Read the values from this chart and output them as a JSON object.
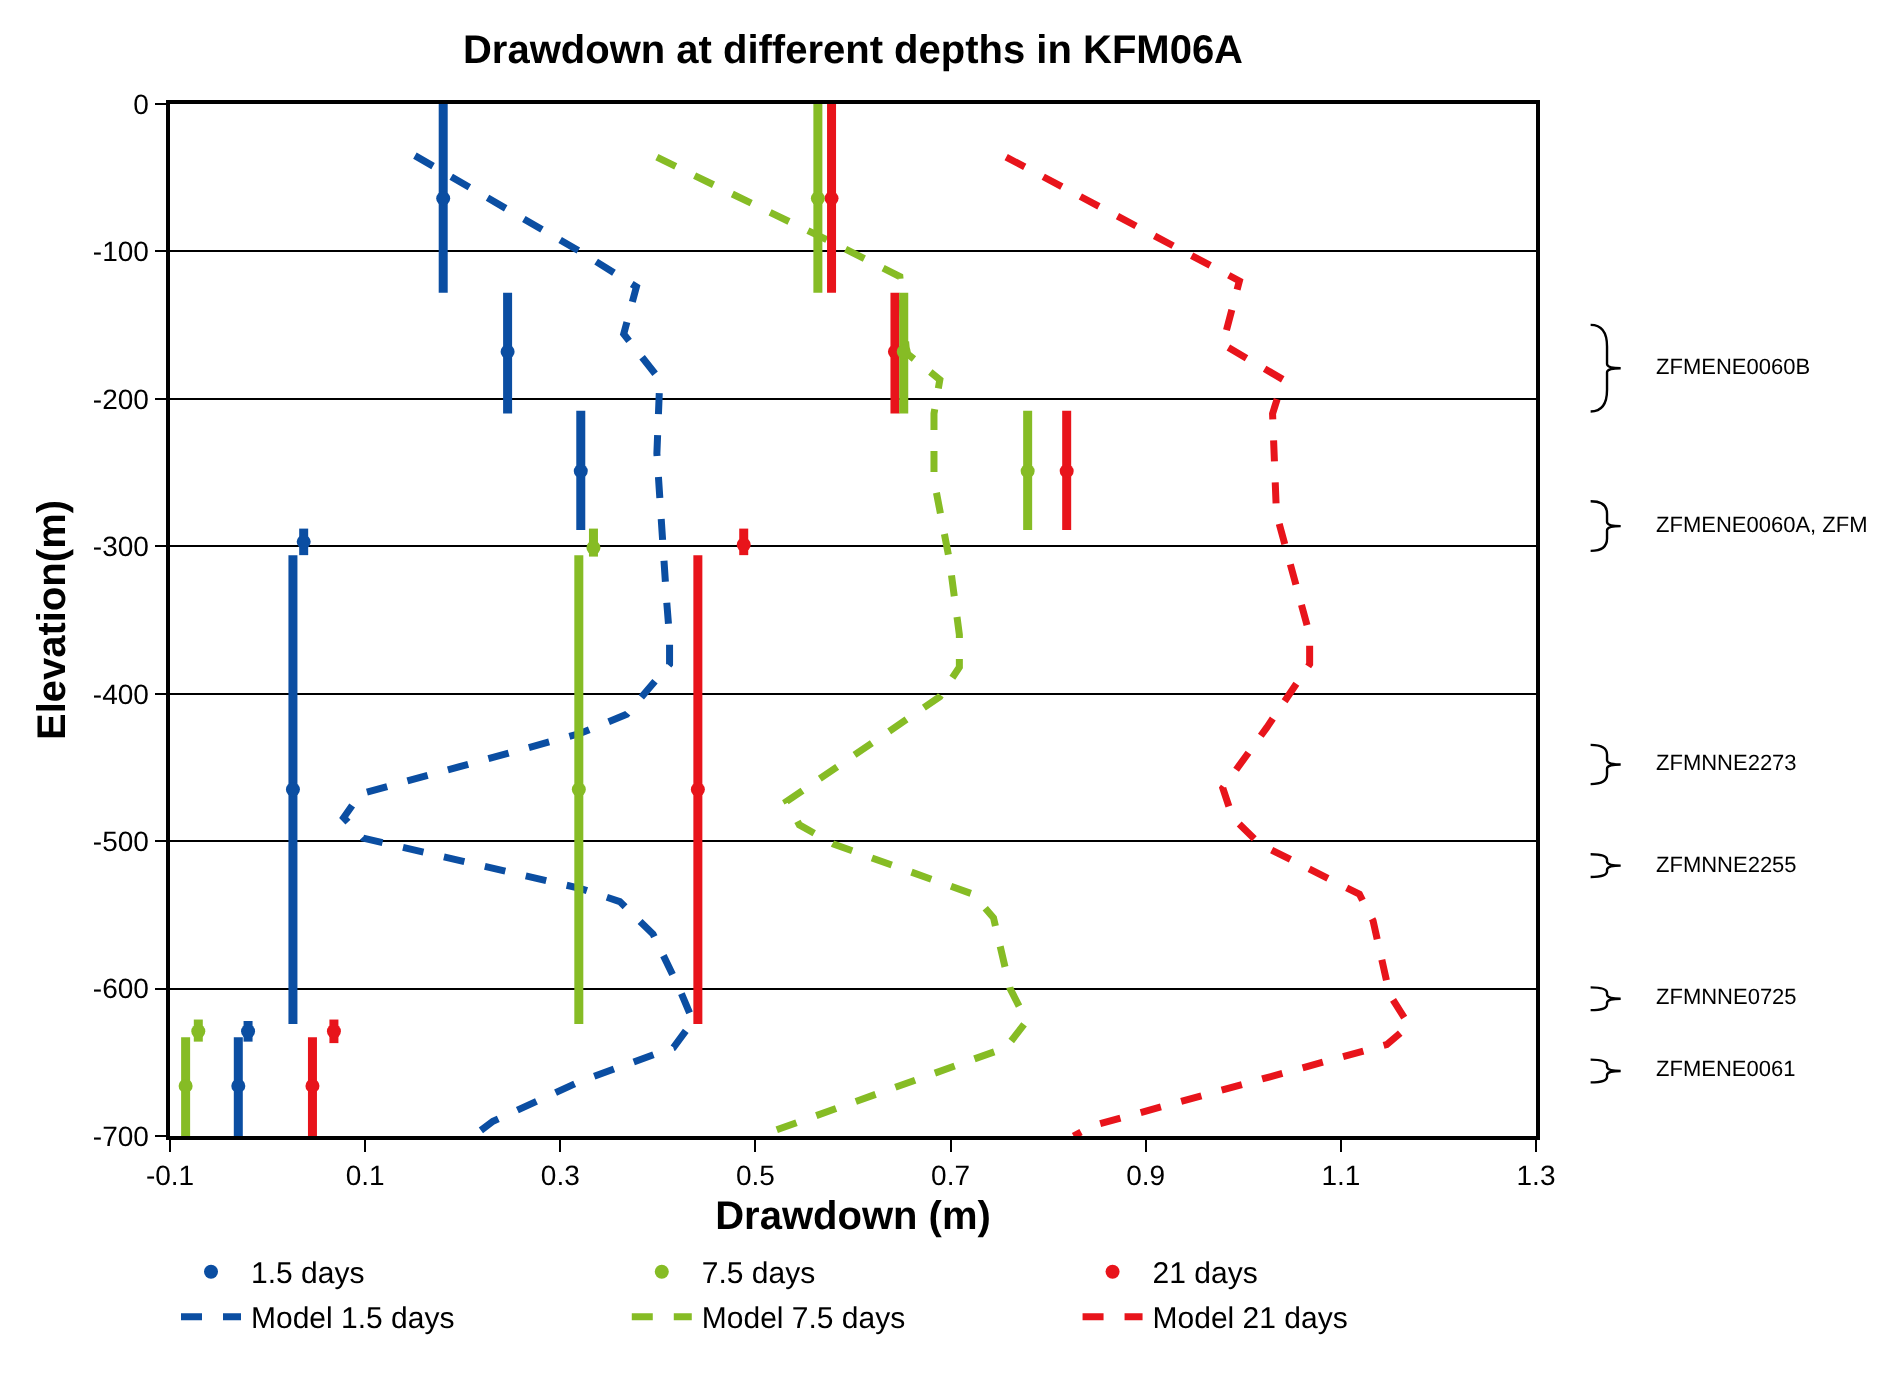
{
  "chart_data": {
    "type": "scatter",
    "title": "Drawdown at different depths in KFM06A",
    "xlabel": "Drawdown (m)",
    "ylabel": "Elevation(m)",
    "xlim": [
      -0.1,
      1.3
    ],
    "xticks": [
      -0.1,
      0.1,
      0.3,
      0.5,
      0.7,
      0.9,
      1.1,
      1.3
    ],
    "ylim": [
      -700,
      0
    ],
    "yticks": [
      -700,
      -600,
      -500,
      -400,
      -300,
      -200,
      -100,
      0
    ],
    "grid": "y",
    "legend": "bottom",
    "marker": "circle",
    "series": [
      {
        "name": "1.5 days",
        "color": "#0b4ea2",
        "x": [
          0.18,
          0.246,
          0.321,
          0.037,
          0.026,
          -0.03,
          -0.02
        ],
        "values": [
          -64,
          -168,
          -249,
          -297,
          -465,
          -666,
          -629
        ],
        "errors": [
          [
            -128,
            0
          ],
          [
            -210,
            -128
          ],
          [
            -289,
            -208
          ],
          [
            -306,
            -288
          ],
          [
            -624,
            -306
          ],
          [
            -700,
            -633
          ],
          [
            -636,
            -622
          ]
        ]
      },
      {
        "name": "7.5 days",
        "color": "#86bc25",
        "x": [
          0.564,
          0.652,
          0.779,
          0.334,
          0.319,
          -0.084,
          -0.071
        ],
        "values": [
          -64,
          -168,
          -249,
          -301,
          -465,
          -666,
          -629
        ],
        "errors": [
          [
            -128,
            0
          ],
          [
            -210,
            -128
          ],
          [
            -289,
            -208
          ],
          [
            -307,
            -288
          ],
          [
            -624,
            -306
          ],
          [
            -700,
            -633
          ],
          [
            -636,
            -621
          ]
        ]
      },
      {
        "name": "21 days",
        "color": "#e8141b",
        "x": [
          0.578,
          0.643,
          0.819,
          0.488,
          0.441,
          0.046,
          0.068
        ],
        "values": [
          -64,
          -168,
          -249,
          -299,
          -465,
          -666,
          -629
        ],
        "errors": [
          [
            -128,
            0
          ],
          [
            -210,
            -128
          ],
          [
            -289,
            -208
          ],
          [
            -306,
            -288
          ],
          [
            -624,
            -306
          ],
          [
            -700,
            -633
          ],
          [
            -637,
            -621
          ]
        ]
      },
      {
        "name": "Model 1.5 days",
        "type": "line",
        "line_style": "dashed",
        "marker": "none",
        "color": "#0b4ea2",
        "x": [
          0.151,
          0.32,
          0.378,
          0.365,
          0.402,
          0.399,
          0.409,
          0.412,
          0.412,
          0.368,
          0.32,
          0.095,
          0.078,
          0.098,
          0.32,
          0.361,
          0.395,
          0.422,
          0.436,
          0.416,
          0.32,
          0.231,
          0.211
        ],
        "values": [
          -35,
          -100,
          -124,
          -156,
          -187,
          -237,
          -337,
          -362,
          -380,
          -414,
          -427,
          -468,
          -484,
          -498,
          -532,
          -541,
          -563,
          -600,
          -622,
          -640,
          -663,
          -690,
          -700
        ]
      },
      {
        "name": "Model 7.5 days",
        "type": "line",
        "line_style": "dashed",
        "marker": "none",
        "color": "#86bc25",
        "x": [
          0.399,
          0.504,
          0.573,
          0.648,
          0.655,
          0.689,
          0.683,
          0.683,
          0.699,
          0.709,
          0.709,
          0.689,
          0.532,
          0.545,
          0.58,
          0.723,
          0.744,
          0.761,
          0.778,
          0.757,
          0.504
        ],
        "values": [
          -36,
          -70,
          -92,
          -117,
          -169,
          -187,
          -210,
          -255,
          -310,
          -360,
          -382,
          -402,
          -473,
          -489,
          -502,
          -536,
          -552,
          -600,
          -622,
          -640,
          -700
        ]
      },
      {
        "name": "Model 21 days",
        "type": "line",
        "line_style": "dashed",
        "marker": "none",
        "color": "#e8141b",
        "x": [
          0.757,
          0.996,
          0.979,
          1.041,
          1.03,
          1.034,
          1.068,
          1.068,
          1.024,
          0.979,
          0.989,
          1.017,
          1.119,
          1.133,
          1.15,
          1.17,
          1.147,
          0.846,
          0.826
        ],
        "values": [
          -36,
          -120,
          -163,
          -187,
          -210,
          -278,
          -360,
          -380,
          -423,
          -464,
          -484,
          -502,
          -536,
          -554,
          -604,
          -625,
          -638,
          -693,
          -700
        ]
      }
    ],
    "annotations": [
      "ZFMENE0060B",
      "ZFMENE0060A, ZFM",
      "ZFMNNE2273",
      "ZFMNNE2255",
      "ZFMNNE0725",
      "ZFMENE0061"
    ]
  }
}
